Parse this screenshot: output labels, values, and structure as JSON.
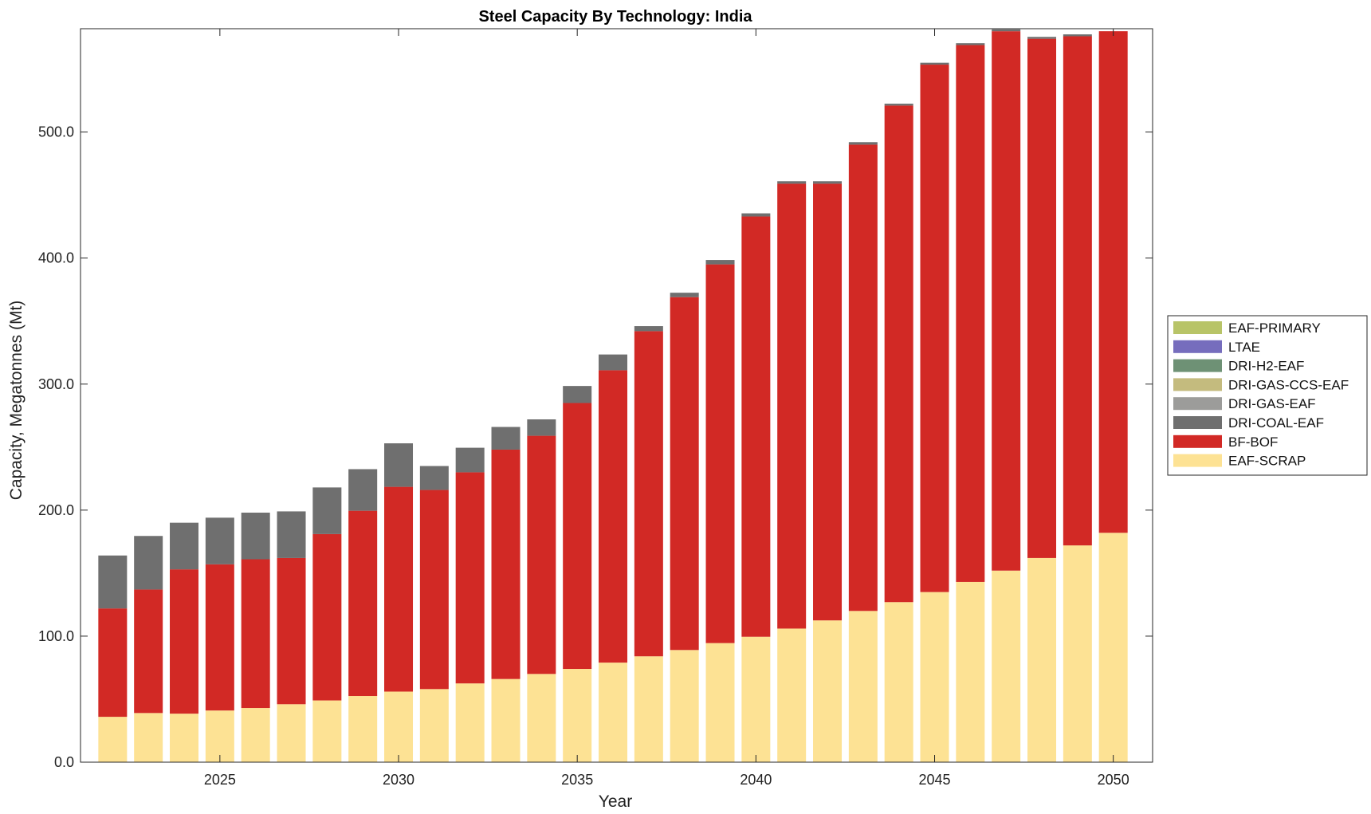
{
  "chart_data": {
    "type": "bar",
    "stacked": true,
    "title": "Steel Capacity By Technology: India",
    "xlabel": "Year",
    "ylabel": "Capacity, Megatonnes (Mt)",
    "ylim": [
      0,
      582
    ],
    "y_ticks": [
      "0.0",
      "100.0",
      "200.0",
      "300.0",
      "400.0",
      "500.0"
    ],
    "y_tick_values": [
      0,
      100,
      200,
      300,
      400,
      500
    ],
    "x_ticks": [
      "2025",
      "2030",
      "2035",
      "2040",
      "2045",
      "2050"
    ],
    "x_tick_values": [
      2025,
      2030,
      2035,
      2040,
      2045,
      2050
    ],
    "xlim": [
      2021.1,
      2051.1
    ],
    "categories": [
      2022,
      2023,
      2024,
      2025,
      2026,
      2027,
      2028,
      2029,
      2030,
      2031,
      2032,
      2033,
      2034,
      2035,
      2036,
      2037,
      2038,
      2039,
      2040,
      2041,
      2042,
      2043,
      2044,
      2045,
      2046,
      2047,
      2048,
      2049,
      2050
    ],
    "legend_position": "right",
    "grid": false,
    "series": [
      {
        "name": "EAF-SCRAP",
        "color": "#FDE294",
        "values": [
          36,
          39,
          38.5,
          41,
          43,
          46,
          49,
          52.5,
          56,
          58,
          62.5,
          66,
          70,
          74,
          79,
          84,
          89,
          94.5,
          99.5,
          106,
          112.5,
          120,
          127,
          135,
          143,
          152,
          162,
          172,
          182
        ]
      },
      {
        "name": "BF-BOF",
        "color": "#D22925",
        "values": [
          86,
          98,
          114.5,
          116,
          118,
          116,
          132,
          147,
          162.5,
          158,
          167.5,
          182,
          189,
          211,
          232,
          258,
          280,
          300.5,
          333.5,
          353,
          346.5,
          370,
          394,
          418.5,
          426,
          428,
          412,
          404,
          398
        ]
      },
      {
        "name": "DRI-COAL-EAF",
        "color": "#6F6F6F",
        "values": [
          42,
          42.5,
          37,
          37,
          37,
          37,
          37,
          33,
          34.5,
          19,
          19.5,
          18,
          13,
          13.5,
          12.5,
          4,
          3.5,
          3.5,
          2.5,
          2,
          2,
          2,
          1.5,
          1.5,
          1.5,
          1.5,
          1.5,
          1.5,
          0
        ]
      },
      {
        "name": "DRI-GAS-EAF",
        "color": "#9C9C9A",
        "values": [
          0,
          0,
          0,
          0,
          0,
          0,
          0,
          0,
          0,
          0,
          0,
          0,
          0,
          0,
          0,
          0,
          0,
          0,
          0,
          0,
          0,
          0,
          0,
          0,
          0,
          0,
          0,
          0,
          0
        ]
      },
      {
        "name": "DRI-GAS-CCS-EAF",
        "color": "#C4BB7E",
        "values": [
          0,
          0,
          0,
          0,
          0,
          0,
          0,
          0,
          0,
          0,
          0,
          0,
          0,
          0,
          0,
          0,
          0,
          0,
          0,
          0,
          0,
          0,
          0,
          0,
          0,
          0,
          0,
          0,
          0
        ]
      },
      {
        "name": "DRI-H2-EAF",
        "color": "#6E9175",
        "values": [
          0,
          0,
          0,
          0,
          0,
          0,
          0,
          0,
          0,
          0,
          0,
          0,
          0,
          0,
          0,
          0,
          0,
          0,
          0,
          0,
          0,
          0,
          0,
          0,
          0,
          0,
          0,
          0,
          0
        ]
      },
      {
        "name": "LTAE",
        "color": "#766DBD",
        "values": [
          0,
          0,
          0,
          0,
          0,
          0,
          0,
          0,
          0,
          0,
          0,
          0,
          0,
          0,
          0,
          0,
          0,
          0,
          0,
          0,
          0,
          0,
          0,
          0,
          0,
          0,
          0,
          0,
          0
        ]
      },
      {
        "name": "EAF-PRIMARY",
        "color": "#B8C468",
        "values": [
          0,
          0,
          0,
          0,
          0,
          0,
          0,
          0,
          0,
          0,
          0,
          0,
          0,
          0,
          0,
          0,
          0,
          0,
          0,
          0,
          0,
          0,
          0,
          0,
          0,
          0,
          0,
          0,
          0
        ]
      }
    ],
    "legend_order": [
      "EAF-PRIMARY",
      "LTAE",
      "DRI-H2-EAF",
      "DRI-GAS-CCS-EAF",
      "DRI-GAS-EAF",
      "DRI-COAL-EAF",
      "BF-BOF",
      "EAF-SCRAP"
    ]
  }
}
